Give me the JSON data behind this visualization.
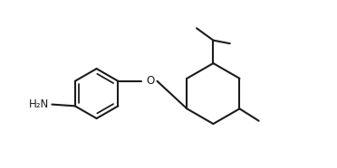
{
  "background": "#ffffff",
  "line_color": "#1c1c1c",
  "line_width": 1.5,
  "font_size": 8.5,
  "figsize": [
    3.72,
    1.86
  ],
  "dpi": 100,
  "xlim": [
    0,
    10.5
  ],
  "ylim": [
    0,
    5.2
  ],
  "NH2_label": "H₂N",
  "O_label": "O"
}
